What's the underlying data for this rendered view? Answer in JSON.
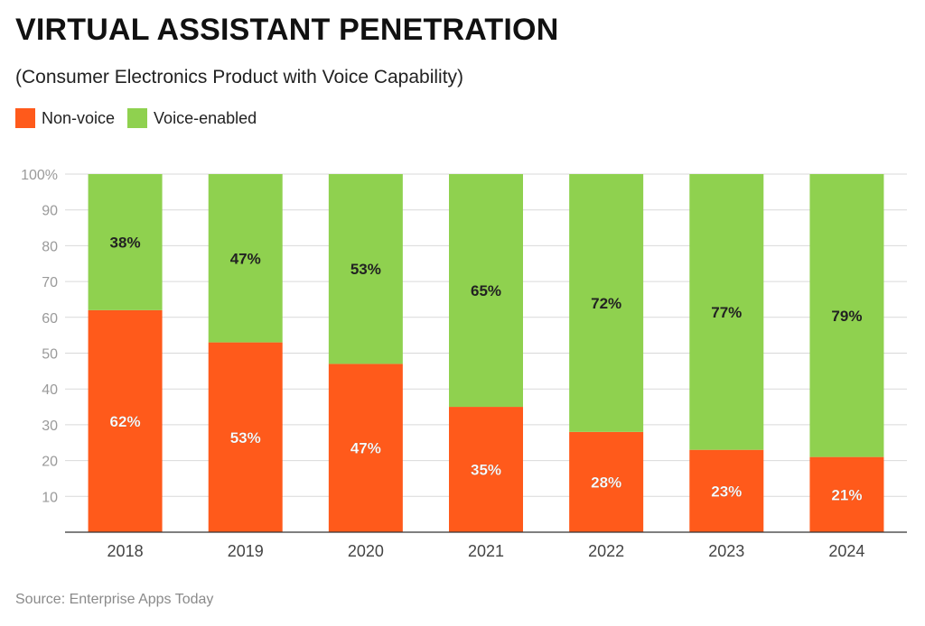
{
  "title": "VIRTUAL ASSISTANT PENETRATION",
  "subtitle": "(Consumer Electronics Product with Voice Capability)",
  "source": "Source: Enterprise Apps Today",
  "colors": {
    "non_voice": "#ff5a1b",
    "voice_enabled": "#8fd14f",
    "grid": "#d9d9d9",
    "axis_text": "#444444",
    "tick_text": "#9a9a9a",
    "bar_label": "#ffffff",
    "bar_label_voice": "#222222"
  },
  "legend": [
    {
      "label": "Non-voice",
      "color": "#ff5a1b"
    },
    {
      "label": "Voice-enabled",
      "color": "#8fd14f"
    }
  ],
  "chart_data": {
    "type": "bar",
    "stacked": true,
    "categories": [
      "2018",
      "2019",
      "2020",
      "2021",
      "2022",
      "2023",
      "2024"
    ],
    "series": [
      {
        "name": "Non-voice",
        "values": [
          62,
          53,
          47,
          35,
          28,
          23,
          21
        ],
        "labels": [
          "62%",
          "53%",
          "47%",
          "35%",
          "28%",
          "23%",
          "21%"
        ]
      },
      {
        "name": "Voice-enabled",
        "values": [
          38,
          47,
          53,
          65,
          72,
          77,
          79
        ],
        "labels": [
          "38%",
          "47%",
          "53%",
          "65%",
          "72%",
          "77%",
          "79%"
        ]
      }
    ],
    "ylim": [
      0,
      100
    ],
    "yticks": [
      10,
      20,
      30,
      40,
      50,
      60,
      70,
      80,
      90,
      100
    ],
    "ytick_labels": [
      "10",
      "20",
      "30",
      "40",
      "50",
      "60",
      "70",
      "80",
      "90",
      "100%"
    ],
    "grid": true,
    "legend_position": "top-left"
  }
}
